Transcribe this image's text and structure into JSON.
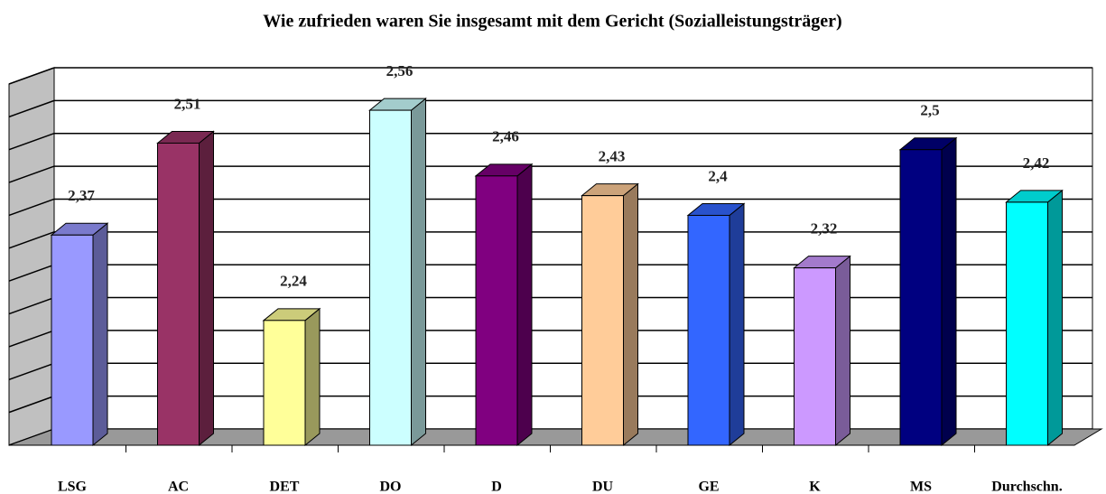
{
  "chart_data": {
    "type": "bar3d",
    "title": "Wie zufrieden waren Sie insgesamt mit dem Gericht (Sozialleistungsträger)",
    "categories": [
      "LSG",
      "AC",
      "DET",
      "DO",
      "D",
      "DU",
      "GE",
      "K",
      "MS",
      "Durchschn."
    ],
    "values": [
      2.37,
      2.51,
      2.24,
      2.56,
      2.46,
      2.43,
      2.4,
      2.32,
      2.5,
      2.42
    ],
    "value_labels": [
      "2,37",
      "2,51",
      "2,24",
      "2,56",
      "2,46",
      "2,43",
      "2,4",
      "2,32",
      "2,5",
      "2,42"
    ],
    "colors": [
      "#9999ff",
      "#993366",
      "#ffff99",
      "#ccffff",
      "#800080",
      "#ffcc99",
      "#3366ff",
      "#cc99ff",
      "#000080",
      "#00ffff"
    ],
    "ylim": [
      2.05,
      2.6
    ],
    "yticks": [
      2.05,
      2.1,
      2.15,
      2.2,
      2.25,
      2.3,
      2.35,
      2.4,
      2.45,
      2.5,
      2.55,
      2.6
    ],
    "grid": true
  }
}
